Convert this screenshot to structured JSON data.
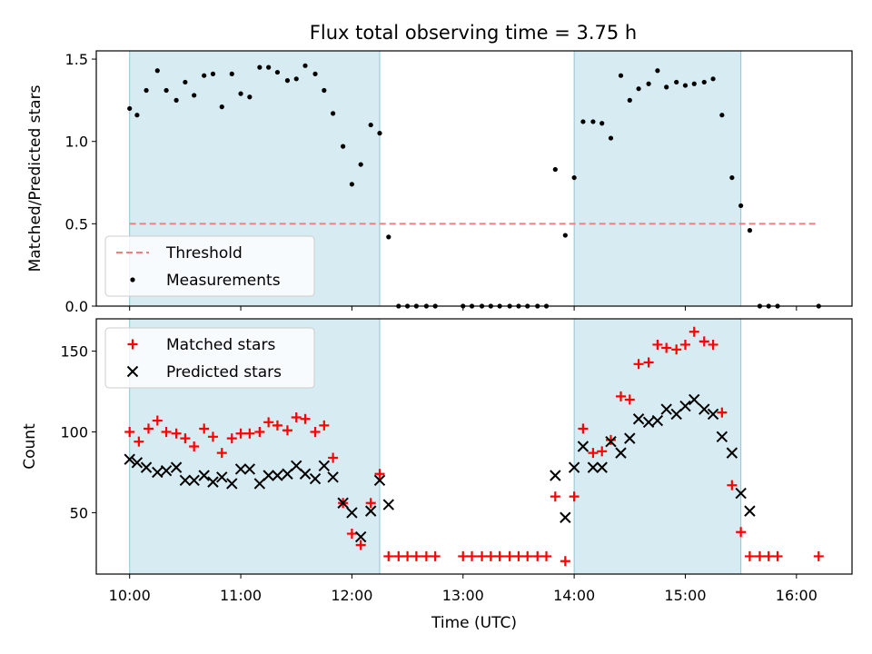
{
  "title": "Flux total observing time = 3.75 h",
  "chart_data": [
    {
      "type": "scatter",
      "ylabel": "Matched/Predicted stars",
      "ylim": [
        0,
        1.55
      ],
      "yticks": [
        0.0,
        0.5,
        1.0,
        1.5
      ],
      "ytick_labels": [
        "0.0",
        "0.5",
        "1.0",
        "1.5"
      ],
      "xlim": [
        9.7,
        16.5
      ],
      "shaded_spans": [
        [
          10.0,
          12.25
        ],
        [
          14.0,
          15.5
        ]
      ],
      "threshold": {
        "name": "Threshold",
        "value": 0.5,
        "x_range": [
          10.0,
          16.2
        ],
        "color": "#f08080"
      },
      "legend": [
        "Threshold",
        "Measurements"
      ],
      "series": [
        {
          "name": "Measurements",
          "marker": "dot",
          "color": "#000000",
          "x": [
            10.0,
            10.067,
            10.15,
            10.25,
            10.33,
            10.42,
            10.5,
            10.58,
            10.67,
            10.75,
            10.83,
            10.92,
            11.0,
            11.08,
            11.17,
            11.25,
            11.33,
            11.42,
            11.5,
            11.58,
            11.67,
            11.75,
            11.83,
            11.92,
            12.0,
            12.08,
            12.17,
            12.25,
            12.33,
            12.42,
            12.5,
            12.58,
            12.67,
            12.75,
            13.0,
            13.08,
            13.17,
            13.25,
            13.33,
            13.42,
            13.5,
            13.58,
            13.67,
            13.75,
            13.83,
            13.92,
            14.0,
            14.08,
            14.17,
            14.25,
            14.33,
            14.42,
            14.5,
            14.58,
            14.67,
            14.75,
            14.83,
            14.92,
            15.0,
            15.08,
            15.17,
            15.25,
            15.33,
            15.42,
            15.5,
            15.58,
            15.67,
            15.75,
            15.83,
            16.2
          ],
          "y": [
            1.2,
            1.16,
            1.31,
            1.43,
            1.31,
            1.25,
            1.36,
            1.28,
            1.4,
            1.41,
            1.21,
            1.41,
            1.29,
            1.27,
            1.45,
            1.45,
            1.42,
            1.37,
            1.38,
            1.46,
            1.41,
            1.31,
            1.17,
            0.97,
            0.74,
            0.86,
            1.1,
            1.05,
            0.42,
            0.0,
            0.0,
            0.0,
            0.0,
            0.0,
            0.0,
            0.0,
            0.0,
            0.0,
            0.0,
            0.0,
            0.0,
            0.0,
            0.0,
            0.0,
            0.83,
            0.43,
            0.78,
            1.12,
            1.12,
            1.11,
            1.02,
            1.4,
            1.25,
            1.32,
            1.35,
            1.43,
            1.33,
            1.36,
            1.34,
            1.35,
            1.36,
            1.38,
            1.16,
            0.78,
            0.61,
            0.46,
            0.0,
            0.0,
            0.0,
            0.0
          ]
        }
      ]
    },
    {
      "type": "scatter",
      "ylabel": "Count",
      "xlabel": "Time (UTC)",
      "ylim": [
        12,
        170
      ],
      "yticks": [
        50,
        100,
        150
      ],
      "ytick_labels": [
        "50",
        "100",
        "150"
      ],
      "xlim": [
        9.7,
        16.5
      ],
      "xticks": [
        10,
        11,
        12,
        13,
        14,
        15,
        16
      ],
      "xtick_labels": [
        "10:00",
        "11:00",
        "12:00",
        "13:00",
        "14:00",
        "15:00",
        "16:00"
      ],
      "shaded_spans": [
        [
          10.0,
          12.25
        ],
        [
          14.0,
          15.5
        ]
      ],
      "legend": [
        "Matched stars",
        "Predicted stars"
      ],
      "series": [
        {
          "name": "Matched stars",
          "marker": "plus",
          "color": "#ff0000",
          "x": [
            10.0,
            10.083,
            10.17,
            10.25,
            10.33,
            10.42,
            10.5,
            10.58,
            10.67,
            10.75,
            10.83,
            10.92,
            11.0,
            11.08,
            11.17,
            11.25,
            11.33,
            11.42,
            11.5,
            11.58,
            11.67,
            11.75,
            11.83,
            11.92,
            12.0,
            12.08,
            12.17,
            12.25,
            12.33,
            12.42,
            12.5,
            12.58,
            12.67,
            12.75,
            13.0,
            13.08,
            13.17,
            13.25,
            13.33,
            13.42,
            13.5,
            13.58,
            13.67,
            13.75,
            13.83,
            13.92,
            14.0,
            14.08,
            14.17,
            14.25,
            14.33,
            14.42,
            14.5,
            14.58,
            14.67,
            14.75,
            14.83,
            14.92,
            15.0,
            15.08,
            15.17,
            15.25,
            15.33,
            15.42,
            15.5,
            15.58,
            15.67,
            15.75,
            15.83,
            16.2
          ],
          "y": [
            100,
            94,
            102,
            107,
            100,
            99,
            96,
            91,
            102,
            97,
            87,
            96,
            99,
            99,
            100,
            106,
            104,
            101,
            109,
            108,
            100,
            104,
            84,
            56,
            37,
            30,
            56,
            74,
            23,
            23,
            23,
            23,
            23,
            23,
            23,
            23,
            23,
            23,
            23,
            23,
            23,
            23,
            23,
            23,
            60,
            20,
            60,
            102,
            87,
            88,
            95,
            122,
            120,
            142,
            143,
            154,
            152,
            151,
            154,
            162,
            156,
            154,
            112,
            67,
            38,
            23,
            23,
            23,
            23,
            23
          ]
        },
        {
          "name": "Predicted stars",
          "marker": "x",
          "color": "#000000",
          "x": [
            10.0,
            10.067,
            10.15,
            10.25,
            10.33,
            10.42,
            10.5,
            10.58,
            10.67,
            10.75,
            10.83,
            10.92,
            11.0,
            11.08,
            11.17,
            11.25,
            11.33,
            11.42,
            11.5,
            11.58,
            11.67,
            11.75,
            11.83,
            11.92,
            12.0,
            12.08,
            12.17,
            12.25,
            12.33,
            13.83,
            13.92,
            14.0,
            14.08,
            14.17,
            14.25,
            14.33,
            14.42,
            14.5,
            14.58,
            14.67,
            14.75,
            14.83,
            14.92,
            15.0,
            15.08,
            15.17,
            15.25,
            15.33,
            15.42,
            15.5,
            15.58
          ],
          "y": [
            83,
            81,
            78,
            75,
            76,
            78,
            70,
            70,
            73,
            69,
            72,
            68,
            77,
            77,
            68,
            73,
            73,
            74,
            79,
            74,
            71,
            79,
            72,
            56,
            50,
            35,
            51,
            70,
            55,
            73,
            47,
            78,
            91,
            78,
            78,
            94,
            87,
            96,
            108,
            106,
            107,
            114,
            111,
            116,
            120,
            114,
            111,
            97,
            87,
            62,
            51
          ]
        }
      ]
    }
  ]
}
